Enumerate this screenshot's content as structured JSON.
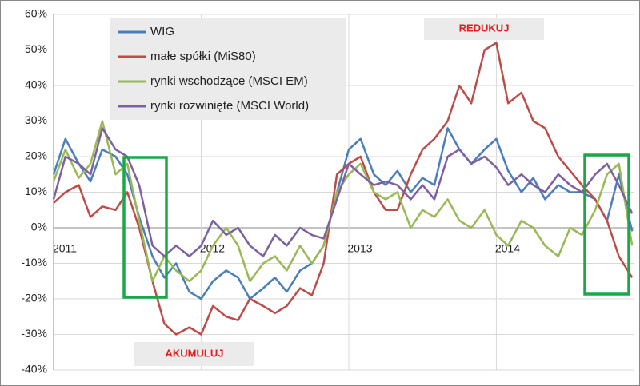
{
  "chart_data": {
    "type": "line",
    "x": [
      2011.0,
      2011.08,
      2011.17,
      2011.25,
      2011.33,
      2011.42,
      2011.5,
      2011.58,
      2011.67,
      2011.75,
      2011.83,
      2011.92,
      2012.0,
      2012.08,
      2012.17,
      2012.25,
      2012.33,
      2012.42,
      2012.5,
      2012.58,
      2012.67,
      2012.75,
      2012.83,
      2012.92,
      2013.0,
      2013.08,
      2013.17,
      2013.25,
      2013.33,
      2013.42,
      2013.5,
      2013.58,
      2013.67,
      2013.75,
      2013.83,
      2013.92,
      2014.0,
      2014.08,
      2014.17,
      2014.25,
      2014.33,
      2014.42,
      2014.5,
      2014.58,
      2014.67,
      2014.75,
      2014.83,
      2014.92
    ],
    "series": [
      {
        "name": "WIG",
        "color": "#4a7ebb",
        "values": [
          15,
          25,
          18,
          13,
          22,
          20,
          15,
          3,
          -8,
          -14,
          -10,
          -18,
          -20,
          -15,
          -12,
          -14,
          -20,
          -17,
          -14,
          -18,
          -12,
          -10,
          -5,
          10,
          22,
          25,
          15,
          12,
          16,
          10,
          14,
          12,
          28,
          22,
          18,
          22,
          25,
          16,
          10,
          14,
          8,
          12,
          10,
          10,
          8,
          2,
          15,
          -1
        ]
      },
      {
        "name": "małe spółki (MiS80)",
        "color": "#be4b48",
        "values": [
          7,
          10,
          12,
          3,
          6,
          5,
          10,
          0,
          -15,
          -27,
          -30,
          -28,
          -30,
          -22,
          -25,
          -26,
          -20,
          -22,
          -24,
          -22,
          -17,
          -19,
          -10,
          15,
          18,
          20,
          10,
          5,
          5,
          15,
          22,
          25,
          30,
          40,
          35,
          50,
          52,
          35,
          38,
          30,
          28,
          20,
          16,
          12,
          8,
          2,
          -8,
          -14
        ]
      },
      {
        "name": "rynki wschodzące (MSCI EM)",
        "color": "#98b954",
        "values": [
          13,
          22,
          14,
          18,
          30,
          15,
          18,
          2,
          -15,
          -8,
          -12,
          -15,
          -12,
          -5,
          0,
          -5,
          -15,
          -10,
          -8,
          -12,
          -5,
          -10,
          -5,
          10,
          15,
          18,
          10,
          8,
          10,
          0,
          5,
          3,
          8,
          2,
          0,
          5,
          -2,
          -5,
          2,
          0,
          -5,
          -8,
          0,
          -2,
          5,
          15,
          18,
          -5
        ]
      },
      {
        "name": "rynki rozwinięte (MSCI World)",
        "color": "#7d60a0",
        "values": [
          8,
          20,
          18,
          15,
          28,
          22,
          20,
          12,
          -5,
          -8,
          -5,
          -8,
          -5,
          2,
          -2,
          0,
          -5,
          -8,
          -2,
          -5,
          0,
          -2,
          -3,
          8,
          18,
          15,
          12,
          13,
          12,
          8,
          12,
          8,
          20,
          22,
          18,
          20,
          17,
          12,
          15,
          12,
          10,
          15,
          12,
          10,
          15,
          18,
          12,
          4
        ]
      }
    ],
    "xlim": [
      2011,
      2014.93
    ],
    "xticks": [
      2011,
      2012,
      2013,
      2014
    ],
    "ylim": [
      -40,
      60
    ],
    "yticks": [
      {
        "value": -40,
        "label": "-40%"
      },
      {
        "value": -30,
        "label": "-30%"
      },
      {
        "value": -20,
        "label": "-20%"
      },
      {
        "value": -10,
        "label": "-10%"
      },
      {
        "value": 0,
        "label": "0%"
      },
      {
        "value": 10,
        "label": "10%"
      },
      {
        "value": 20,
        "label": "20%"
      },
      {
        "value": 30,
        "label": "30%"
      },
      {
        "value": 40,
        "label": "40%"
      },
      {
        "value": 50,
        "label": "50%"
      },
      {
        "value": 60,
        "label": "60%"
      }
    ],
    "grid": true,
    "annotations": [
      "REDUKUJ",
      "AKUMULUJ"
    ]
  }
}
